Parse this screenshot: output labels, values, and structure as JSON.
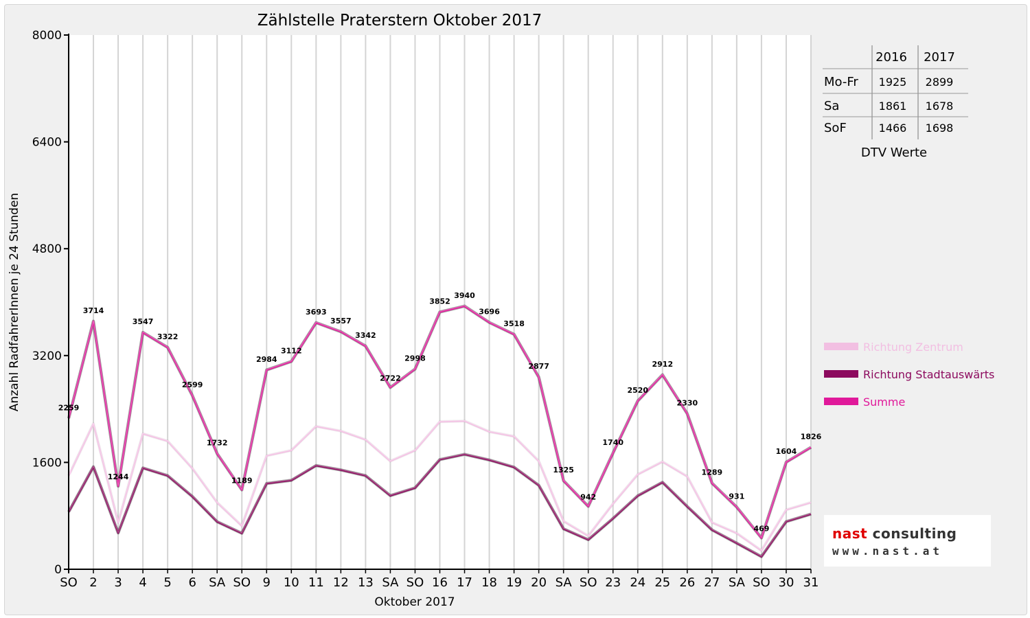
{
  "chart_data": {
    "type": "line",
    "title": "Zählstelle Praterstern Oktober 2017",
    "xlabel": "Oktober 2017",
    "ylabel": "Anzahl RadfahrerInnen je 24 Stunden",
    "ylim": [
      0,
      8000
    ],
    "yticks": [
      0,
      1600,
      3200,
      4800,
      6400,
      8000
    ],
    "grid": {
      "vertical": true,
      "horizontal": false
    },
    "legend_position": "right",
    "categories": [
      "SO",
      "2",
      "3",
      "4",
      "5",
      "6",
      "SA",
      "SO",
      "9",
      "10",
      "11",
      "12",
      "13",
      "SA",
      "SO",
      "16",
      "17",
      "18",
      "19",
      "20",
      "SA",
      "SO",
      "23",
      "24",
      "25",
      "26",
      "27",
      "SA",
      "SO",
      "30",
      "31"
    ],
    "category_colors": [
      "#e00000",
      "#000000",
      "#000000",
      "#000000",
      "#000000",
      "#000000",
      "#000000",
      "#e00000",
      "#000000",
      "#000000",
      "#000000",
      "#000000",
      "#000000",
      "#000000",
      "#e00000",
      "#000000",
      "#000000",
      "#000000",
      "#000000",
      "#000000",
      "#000000",
      "#e00000",
      "#000000",
      "#000000",
      "#000000",
      "#e00000",
      "#000000",
      "#000000",
      "#e00000",
      "#000000",
      "#000000"
    ],
    "series": [
      {
        "name": "Richtung Zentrum",
        "color": "#f2bfe2",
        "values": [
          1400,
          2180,
          700,
          2030,
          1920,
          1510,
          1000,
          650,
          1700,
          1780,
          2140,
          2070,
          1940,
          1620,
          1780,
          2210,
          2220,
          2060,
          1990,
          1620,
          720,
          500,
          980,
          1420,
          1610,
          1390,
          700,
          540,
          280,
          890,
          1000
        ]
      },
      {
        "name": "Richtung Stadtauswärts",
        "color": "#8c0a5e",
        "values": [
          859,
          1534,
          544,
          1517,
          1402,
          1089,
          712,
          539,
          1284,
          1332,
          1553,
          1487,
          1402,
          1102,
          1218,
          1642,
          1720,
          1636,
          1528,
          1257,
          605,
          442,
          760,
          1100,
          1302,
          940,
          589,
          391,
          189,
          714,
          826
        ]
      },
      {
        "name": "Summe",
        "color": "#e0199a",
        "values": [
          2259,
          3714,
          1244,
          3547,
          3322,
          2599,
          1732,
          1189,
          2984,
          3112,
          3693,
          3557,
          3342,
          2722,
          2998,
          3852,
          3940,
          3696,
          3518,
          2877,
          1325,
          942,
          1740,
          2520,
          2912,
          2330,
          1289,
          931,
          469,
          1604,
          1826
        ],
        "labels": [
          "2259",
          "3714",
          "1244",
          "3547",
          "3322",
          "2599",
          "1732",
          "1189",
          "2984",
          "3112",
          "3693",
          "3557",
          "3342",
          "2722",
          "2998",
          "3852",
          "3940",
          "3696",
          "3518",
          "2877",
          "1325",
          "942",
          "1740",
          "2520",
          "2912",
          "2330",
          "1289",
          "931",
          "469",
          "1604",
          "1826"
        ]
      }
    ],
    "dtv_table": {
      "headers": [
        "",
        "2016",
        "2017"
      ],
      "rows": [
        {
          "label": "Mo-Fr",
          "v2016": "1925",
          "v2017": "2899"
        },
        {
          "label": "Sa",
          "v2016": "1861",
          "v2017": "1678"
        },
        {
          "label": "SoF",
          "v2016": "1466",
          "v2017": "1698"
        }
      ],
      "caption": "DTV Werte"
    }
  },
  "logo": {
    "name": "nast consulting",
    "url": "www.nast.at",
    "colors": {
      "nast": "#e00000",
      "consulting": "#333333"
    }
  }
}
